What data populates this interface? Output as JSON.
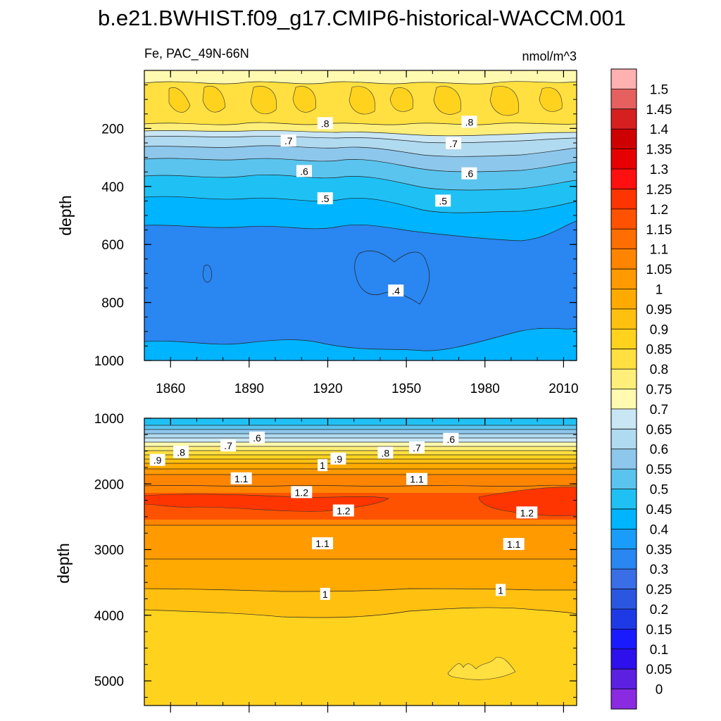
{
  "title": "b.e21.BWHIST.f09_g17.CMIP6-historical-WACCM.001",
  "subtitle_left": "Fe, PAC_49N-66N",
  "subtitle_right": "nmol/m^3",
  "colorbar": {
    "levels": [
      "0",
      "0.05",
      "0.1",
      "0.15",
      "0.2",
      "0.25",
      "0.3",
      "0.35",
      "0.4",
      "0.45",
      "0.5",
      "0.55",
      "0.6",
      "0.65",
      "0.7",
      "0.75",
      "0.8",
      "0.85",
      "0.9",
      "0.95",
      "1",
      "1.05",
      "1.1",
      "1.15",
      "1.2",
      "1.25",
      "1.3",
      "1.35",
      "1.4",
      "1.45",
      "1.5"
    ],
    "colors": [
      "#8a2be2",
      "#5b20e0",
      "#2e10ec",
      "#1a1aff",
      "#1e3ae6",
      "#2a56e0",
      "#3a6ee6",
      "#2a86f0",
      "#1a9cfa",
      "#00b4ff",
      "#1fc1f5",
      "#5ac4ee",
      "#8ec7ec",
      "#b0daf0",
      "#c9e6f5",
      "#fffab0",
      "#ffef7a",
      "#ffe040",
      "#ffd21e",
      "#ffc010",
      "#ffaa00",
      "#ff9a00",
      "#ff8500",
      "#ff6e00",
      "#ff5200",
      "#ff3500",
      "#ff1010",
      "#e60000",
      "#cf0000",
      "#d62020",
      "#e66060",
      "#ffb0b0"
    ]
  },
  "chart_data": [
    {
      "type": "heatmap",
      "panel": "upper",
      "xlabel": "",
      "ylabel": "depth",
      "x_ticks": [
        1860,
        1890,
        1920,
        1950,
        1980,
        2010
      ],
      "y_ticks": [
        200,
        400,
        600,
        800,
        1000
      ],
      "xlim": [
        1850,
        2015
      ],
      "ylim": [
        1000,
        0
      ],
      "contour_labels": [
        {
          "text": ".8",
          "x": 1919,
          "y": 183
        },
        {
          "text": ".8",
          "x": 1974,
          "y": 178
        },
        {
          "text": ".7",
          "x": 1905,
          "y": 243
        },
        {
          "text": ".7",
          "x": 1968,
          "y": 252
        },
        {
          "text": ".6",
          "x": 1911,
          "y": 348
        },
        {
          "text": ".6",
          "x": 1974,
          "y": 356
        },
        {
          "text": ".5",
          "x": 1919,
          "y": 442
        },
        {
          "text": ".5",
          "x": 1964,
          "y": 450
        },
        {
          "text": ".4",
          "x": 1946,
          "y": 760
        }
      ]
    },
    {
      "type": "heatmap",
      "panel": "lower",
      "xlabel": "",
      "ylabel": "depth",
      "x_ticks": [
        1860,
        1890,
        1920,
        1950,
        1980,
        2010
      ],
      "y_ticks": [
        1000,
        2000,
        3000,
        4000,
        5000
      ],
      "xlim": [
        1850,
        2015
      ],
      "ylim": [
        5375,
        1000
      ],
      "contour_labels": [
        {
          "text": ".6",
          "x": 1893,
          "y": 1300
        },
        {
          "text": ".7",
          "x": 1882,
          "y": 1420
        },
        {
          "text": ".8",
          "x": 1864,
          "y": 1520
        },
        {
          "text": ".9",
          "x": 1855,
          "y": 1640
        },
        {
          "text": ".6",
          "x": 1967,
          "y": 1320
        },
        {
          "text": ".7",
          "x": 1954,
          "y": 1450
        },
        {
          "text": ".8",
          "x": 1942,
          "y": 1530
        },
        {
          "text": ".9",
          "x": 1924,
          "y": 1620
        },
        {
          "text": "1",
          "x": 1918,
          "y": 1720
        },
        {
          "text": "1.1",
          "x": 1887,
          "y": 1920
        },
        {
          "text": "1.1",
          "x": 1954,
          "y": 1930
        },
        {
          "text": "1.2",
          "x": 1910,
          "y": 2130
        },
        {
          "text": "1.2",
          "x": 1926,
          "y": 2410
        },
        {
          "text": "1.2",
          "x": 1996,
          "y": 2440
        },
        {
          "text": "1.1",
          "x": 1918,
          "y": 2910
        },
        {
          "text": "1.1",
          "x": 1991,
          "y": 2920
        },
        {
          "text": "1",
          "x": 1919,
          "y": 3680
        },
        {
          "text": "1",
          "x": 1986,
          "y": 3620
        }
      ]
    }
  ]
}
